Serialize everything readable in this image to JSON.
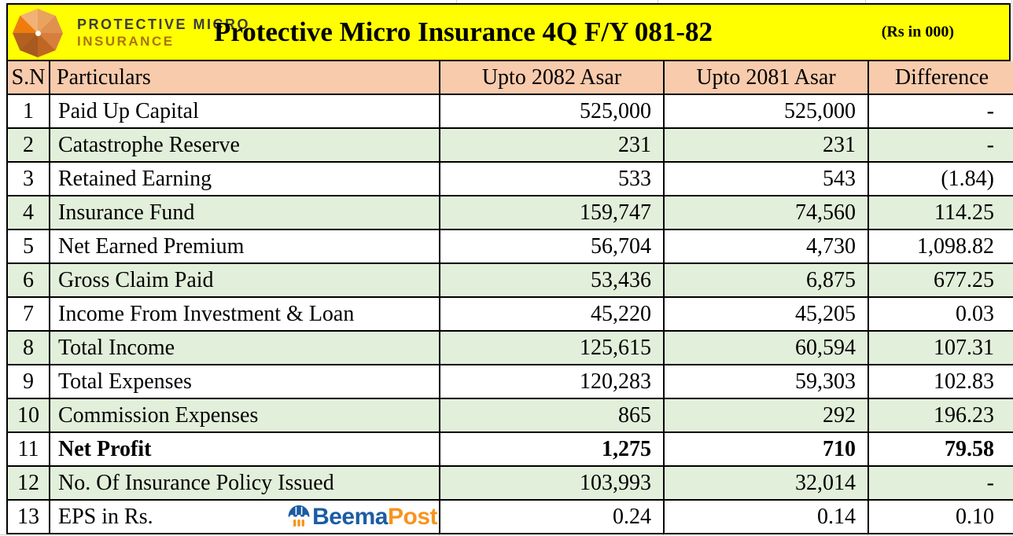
{
  "header": {
    "logo_line1": "PROTECTIVE MICRO",
    "logo_line2": "INSURANCE",
    "title": "Protective Micro Insurance 4Q F/Y 081-82",
    "unit_note": "(Rs in 000)"
  },
  "watermark": {
    "beema": "Beema",
    "post": "Post",
    "attach_to_sn": "13"
  },
  "colors": {
    "title_background": "#ffff00",
    "header_background": "#f8cbad",
    "stripe_green": "#e2efda",
    "stripe_white": "#ffffff",
    "border": "#000000",
    "logo_orange": "#ee7d0e",
    "logo_brown": "#a87311",
    "beema_blue": "#1b5ca5",
    "beema_orange": "#f7941d"
  },
  "chart_data": {
    "type": "table",
    "title": "Protective Micro Insurance 4Q F/Y 081-82",
    "unit": "(Rs in 000)",
    "columns": [
      "S.N",
      "Particulars",
      "Upto 2082 Asar",
      "Upto 2081 Asar",
      "Difference"
    ],
    "rows": [
      [
        "1",
        "Paid Up Capital",
        "525,000",
        "525,000",
        "-"
      ],
      [
        "2",
        "Catastrophe Reserve",
        "231",
        "231",
        "-"
      ],
      [
        "3",
        "Retained Earning",
        "533",
        "543",
        "(1.84)"
      ],
      [
        "4",
        "Insurance Fund",
        "159,747",
        "74,560",
        "114.25"
      ],
      [
        "5",
        "Net Earned Premium",
        "56,704",
        "4,730",
        "1,098.82"
      ],
      [
        "6",
        "Gross Claim Paid",
        "53,436",
        "6,875",
        "677.25"
      ],
      [
        "7",
        "Income From Investment & Loan",
        "45,220",
        "45,205",
        "0.03"
      ],
      [
        "8",
        "Total Income",
        "125,615",
        "60,594",
        "107.31"
      ],
      [
        "9",
        "Total Expenses",
        "120,283",
        "59,303",
        "102.83"
      ],
      [
        "10",
        "Commission Expenses",
        "865",
        "292",
        "196.23"
      ],
      [
        "11",
        "Net Profit",
        "1,275",
        "710",
        "79.58"
      ],
      [
        "12",
        "No. Of Insurance Policy Issued",
        "103,993",
        "32,014",
        "-"
      ],
      [
        "13",
        "EPS in Rs.",
        "0.24",
        "0.14",
        "0.10"
      ]
    ],
    "bold_row_sn": "11",
    "layout": {
      "striped": true,
      "stripe_colors": [
        "#ffffff",
        "#e2efda"
      ],
      "header_color": "#f8cbad",
      "grid": true,
      "legend": "none"
    }
  }
}
